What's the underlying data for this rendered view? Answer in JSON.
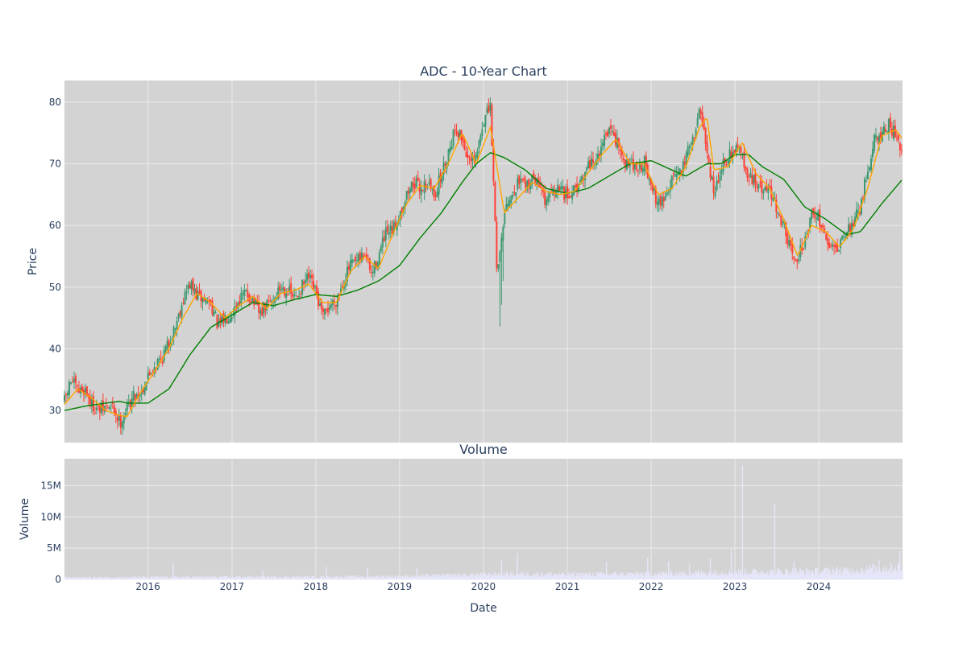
{
  "colors": {
    "plot_bg": "#d3d3d3",
    "grid": "#ebebeb",
    "up": "#3d9970",
    "down": "#ff4136",
    "ma_short": "#ffa500",
    "ma_long": "#008000",
    "volume": "#e6e6fa",
    "text": "#2a3f5f"
  },
  "chart_data": [
    {
      "type": "candlestick",
      "title": "ADC - 10-Year Chart",
      "xlabel": "",
      "ylabel": "Price",
      "grid": true,
      "x_tick_labels": [
        "2016",
        "2017",
        "2018",
        "2019",
        "2020",
        "2021",
        "2022",
        "2023",
        "2024"
      ],
      "y_tick_labels": [
        "30",
        "40",
        "50",
        "60",
        "70",
        "80"
      ],
      "xlim": [
        "2015-01-02",
        "2024-12-31"
      ],
      "ylim": [
        24.8,
        83.5
      ],
      "close_anchors": [
        [
          "2015-01-02",
          31.5
        ],
        [
          "2015-02-01",
          35.0
        ],
        [
          "2015-03-01",
          33.0
        ],
        [
          "2015-04-01",
          33.5
        ],
        [
          "2015-05-01",
          31.0
        ],
        [
          "2015-06-01",
          30.0
        ],
        [
          "2015-07-01",
          30.5
        ],
        [
          "2015-08-01",
          30.5
        ],
        [
          "2015-09-01",
          28.0
        ],
        [
          "2015-10-01",
          30.5
        ],
        [
          "2015-11-01",
          32.5
        ],
        [
          "2015-12-01",
          33.0
        ],
        [
          "2016-01-01",
          35.5
        ],
        [
          "2016-02-01",
          37.5
        ],
        [
          "2016-03-01",
          38.5
        ],
        [
          "2016-04-01",
          41.0
        ],
        [
          "2016-05-01",
          44.0
        ],
        [
          "2016-06-01",
          48.0
        ],
        [
          "2016-07-01",
          50.5
        ],
        [
          "2016-08-01",
          48.5
        ],
        [
          "2016-09-01",
          48.0
        ],
        [
          "2016-10-01",
          47.5
        ],
        [
          "2016-11-01",
          43.5
        ],
        [
          "2016-12-01",
          45.0
        ],
        [
          "2017-01-01",
          46.0
        ],
        [
          "2017-02-01",
          48.0
        ],
        [
          "2017-03-01",
          49.0
        ],
        [
          "2017-04-01",
          48.0
        ],
        [
          "2017-05-01",
          45.5
        ],
        [
          "2017-06-01",
          47.0
        ],
        [
          "2017-07-01",
          48.0
        ],
        [
          "2017-08-01",
          50.0
        ],
        [
          "2017-09-01",
          49.5
        ],
        [
          "2017-10-01",
          48.0
        ],
        [
          "2017-11-01",
          50.0
        ],
        [
          "2017-12-01",
          51.5
        ],
        [
          "2018-01-01",
          49.0
        ],
        [
          "2018-02-01",
          45.0
        ],
        [
          "2018-03-01",
          47.0
        ],
        [
          "2018-04-01",
          48.0
        ],
        [
          "2018-05-01",
          51.0
        ],
        [
          "2018-06-01",
          53.5
        ],
        [
          "2018-07-01",
          54.0
        ],
        [
          "2018-08-01",
          55.5
        ],
        [
          "2018-09-01",
          52.0
        ],
        [
          "2018-10-01",
          55.0
        ],
        [
          "2018-11-01",
          58.5
        ],
        [
          "2018-12-01",
          59.0
        ],
        [
          "2019-01-01",
          62.0
        ],
        [
          "2019-02-01",
          65.0
        ],
        [
          "2019-03-01",
          67.0
        ],
        [
          "2019-04-01",
          66.0
        ],
        [
          "2019-05-01",
          67.0
        ],
        [
          "2019-06-01",
          65.0
        ],
        [
          "2019-07-01",
          68.0
        ],
        [
          "2019-08-01",
          72.0
        ],
        [
          "2019-09-01",
          76.0
        ],
        [
          "2019-10-01",
          74.0
        ],
        [
          "2019-11-01",
          70.0
        ],
        [
          "2019-12-01",
          71.0
        ],
        [
          "2020-01-01",
          77.0
        ],
        [
          "2020-02-01",
          79.0
        ],
        [
          "2020-03-01",
          52.0
        ],
        [
          "2020-04-01",
          62.0
        ],
        [
          "2020-05-01",
          64.0
        ],
        [
          "2020-06-01",
          67.0
        ],
        [
          "2020-07-01",
          66.0
        ],
        [
          "2020-08-01",
          68.0
        ],
        [
          "2020-09-01",
          66.0
        ],
        [
          "2020-10-01",
          64.0
        ],
        [
          "2020-11-01",
          65.0
        ],
        [
          "2020-12-01",
          66.0
        ],
        [
          "2021-01-01",
          64.5
        ],
        [
          "2021-02-01",
          66.0
        ],
        [
          "2021-03-01",
          67.5
        ],
        [
          "2021-04-01",
          70.0
        ],
        [
          "2021-05-01",
          71.0
        ],
        [
          "2021-06-01",
          73.0
        ],
        [
          "2021-07-01",
          75.0
        ],
        [
          "2021-08-01",
          74.0
        ],
        [
          "2021-09-01",
          70.0
        ],
        [
          "2021-10-01",
          70.5
        ],
        [
          "2021-11-01",
          69.0
        ],
        [
          "2021-12-01",
          70.5
        ],
        [
          "2022-01-01",
          66.0
        ],
        [
          "2022-02-01",
          63.5
        ],
        [
          "2022-03-01",
          64.5
        ],
        [
          "2022-04-01",
          68.0
        ],
        [
          "2022-05-01",
          68.0
        ],
        [
          "2022-06-01",
          71.0
        ],
        [
          "2022-07-01",
          74.0
        ],
        [
          "2022-08-01",
          79.0
        ],
        [
          "2022-09-01",
          72.0
        ],
        [
          "2022-10-01",
          65.0
        ],
        [
          "2022-11-01",
          69.0
        ],
        [
          "2022-12-01",
          71.0
        ],
        [
          "2023-01-01",
          73.0
        ],
        [
          "2023-02-01",
          71.0
        ],
        [
          "2023-03-01",
          68.0
        ],
        [
          "2023-04-01",
          67.0
        ],
        [
          "2023-05-01",
          65.5
        ],
        [
          "2023-06-01",
          65.5
        ],
        [
          "2023-07-01",
          63.0
        ],
        [
          "2023-08-01",
          60.0
        ],
        [
          "2023-09-01",
          56.0
        ],
        [
          "2023-10-01",
          54.5
        ],
        [
          "2023-11-01",
          57.5
        ],
        [
          "2023-12-01",
          62.0
        ],
        [
          "2024-01-01",
          61.5
        ],
        [
          "2024-02-01",
          57.5
        ],
        [
          "2024-03-01",
          56.5
        ],
        [
          "2024-04-01",
          56.5
        ],
        [
          "2024-05-01",
          58.5
        ],
        [
          "2024-06-01",
          61.0
        ],
        [
          "2024-07-01",
          63.0
        ],
        [
          "2024-08-01",
          69.0
        ],
        [
          "2024-09-01",
          74.0
        ],
        [
          "2024-10-01",
          75.0
        ],
        [
          "2024-11-01",
          76.5
        ],
        [
          "2024-12-01",
          74.5
        ],
        [
          "2024-12-31",
          70.5
        ]
      ],
      "sma_short_anchors": [
        [
          "2015-01-02",
          31.0
        ],
        [
          "2015-03-01",
          33.5
        ],
        [
          "2015-05-01",
          32.0
        ],
        [
          "2015-07-01",
          30.0
        ],
        [
          "2015-09-01",
          29.2
        ],
        [
          "2015-10-01",
          29.0
        ],
        [
          "2015-12-01",
          33.0
        ],
        [
          "2016-02-01",
          36.5
        ],
        [
          "2016-04-01",
          40.0
        ],
        [
          "2016-06-01",
          45.0
        ],
        [
          "2016-08-01",
          49.0
        ],
        [
          "2016-10-01",
          47.5
        ],
        [
          "2016-12-01",
          45.0
        ],
        [
          "2017-02-01",
          47.0
        ],
        [
          "2017-04-01",
          48.5
        ],
        [
          "2017-06-01",
          46.5
        ],
        [
          "2017-08-01",
          49.0
        ],
        [
          "2017-10-01",
          49.5
        ],
        [
          "2017-12-01",
          50.5
        ],
        [
          "2018-02-01",
          47.5
        ],
        [
          "2018-04-01",
          47.5
        ],
        [
          "2018-06-01",
          52.5
        ],
        [
          "2018-08-01",
          55.0
        ],
        [
          "2018-10-01",
          53.0
        ],
        [
          "2018-12-01",
          58.5
        ],
        [
          "2019-02-01",
          63.5
        ],
        [
          "2019-04-01",
          66.5
        ],
        [
          "2019-06-01",
          66.0
        ],
        [
          "2019-08-01",
          70.0
        ],
        [
          "2019-10-01",
          75.0
        ],
        [
          "2019-12-01",
          70.0
        ],
        [
          "2020-02-01",
          76.0
        ],
        [
          "2020-04-01",
          62.0
        ],
        [
          "2020-06-01",
          64.5
        ],
        [
          "2020-08-01",
          67.0
        ],
        [
          "2020-10-01",
          65.5
        ],
        [
          "2020-12-01",
          65.0
        ],
        [
          "2021-02-01",
          65.5
        ],
        [
          "2021-04-01",
          68.5
        ],
        [
          "2021-06-01",
          71.5
        ],
        [
          "2021-08-01",
          74.0
        ],
        [
          "2021-10-01",
          70.0
        ],
        [
          "2021-12-01",
          70.0
        ],
        [
          "2022-02-01",
          65.0
        ],
        [
          "2022-04-01",
          66.0
        ],
        [
          "2022-06-01",
          69.5
        ],
        [
          "2022-08-01",
          76.0
        ],
        [
          "2022-09-01",
          77.5
        ],
        [
          "2022-10-01",
          69.0
        ],
        [
          "2022-12-01",
          69.5
        ],
        [
          "2023-02-01",
          73.5
        ],
        [
          "2023-04-01",
          68.5
        ],
        [
          "2023-06-01",
          66.0
        ],
        [
          "2023-08-01",
          61.0
        ],
        [
          "2023-10-01",
          55.0
        ],
        [
          "2023-12-01",
          60.0
        ],
        [
          "2024-02-01",
          59.0
        ],
        [
          "2024-04-01",
          56.5
        ],
        [
          "2024-06-01",
          59.5
        ],
        [
          "2024-08-01",
          66.0
        ],
        [
          "2024-10-01",
          74.5
        ],
        [
          "2024-12-01",
          75.5
        ],
        [
          "2024-12-31",
          74.0
        ]
      ],
      "sma_long_anchors": [
        [
          "2015-01-02",
          30.0
        ],
        [
          "2015-04-01",
          30.7
        ],
        [
          "2015-07-01",
          31.2
        ],
        [
          "2015-09-01",
          31.5
        ],
        [
          "2015-10-01",
          31.2
        ],
        [
          "2016-01-01",
          31.2
        ],
        [
          "2016-04-01",
          33.5
        ],
        [
          "2016-07-01",
          39.0
        ],
        [
          "2016-10-01",
          43.5
        ],
        [
          "2017-01-01",
          45.5
        ],
        [
          "2017-04-01",
          47.5
        ],
        [
          "2017-07-01",
          47.0
        ],
        [
          "2017-10-01",
          48.0
        ],
        [
          "2018-01-01",
          48.8
        ],
        [
          "2018-04-01",
          48.5
        ],
        [
          "2018-07-01",
          49.5
        ],
        [
          "2018-10-01",
          51.0
        ],
        [
          "2019-01-01",
          53.5
        ],
        [
          "2019-04-01",
          58.0
        ],
        [
          "2019-07-01",
          62.0
        ],
        [
          "2019-10-01",
          67.0
        ],
        [
          "2019-12-01",
          70.0
        ],
        [
          "2020-02-01",
          71.8
        ],
        [
          "2020-04-01",
          71.0
        ],
        [
          "2020-07-01",
          69.0
        ],
        [
          "2020-10-01",
          66.0
        ],
        [
          "2021-01-01",
          65.2
        ],
        [
          "2021-04-01",
          66.0
        ],
        [
          "2021-07-01",
          68.0
        ],
        [
          "2021-10-01",
          70.0
        ],
        [
          "2022-01-01",
          70.5
        ],
        [
          "2022-04-01",
          69.0
        ],
        [
          "2022-06-01",
          68.0
        ],
        [
          "2022-09-01",
          70.0
        ],
        [
          "2022-11-01",
          70.0
        ],
        [
          "2023-01-01",
          71.5
        ],
        [
          "2023-03-01",
          71.5
        ],
        [
          "2023-05-01",
          69.5
        ],
        [
          "2023-08-01",
          67.5
        ],
        [
          "2023-11-01",
          63.0
        ],
        [
          "2024-02-01",
          61.0
        ],
        [
          "2024-05-01",
          58.5
        ],
        [
          "2024-07-01",
          59.0
        ],
        [
          "2024-10-01",
          63.5
        ],
        [
          "2024-12-31",
          67.5
        ]
      ]
    },
    {
      "type": "bar",
      "title": "Volume",
      "xlabel": "Date",
      "ylabel": "Volume",
      "grid": true,
      "x_tick_labels": [
        "2016",
        "2017",
        "2018",
        "2019",
        "2020",
        "2021",
        "2022",
        "2023",
        "2024"
      ],
      "y_tick_labels": [
        "0",
        "5M",
        "10M",
        "15M"
      ],
      "xlim": [
        "2015-01-02",
        "2024-12-31"
      ],
      "ylim": [
        0,
        19300000
      ],
      "baseline_anchors": [
        [
          "2015-01-02",
          300000
        ],
        [
          "2016-01-01",
          350000
        ],
        [
          "2017-01-01",
          400000
        ],
        [
          "2018-01-01",
          400000
        ],
        [
          "2019-01-01",
          500000
        ],
        [
          "2019-06-01",
          600000
        ],
        [
          "2020-01-01",
          800000
        ],
        [
          "2020-06-01",
          900000
        ],
        [
          "2021-01-01",
          800000
        ],
        [
          "2022-01-01",
          900000
        ],
        [
          "2022-06-01",
          1000000
        ],
        [
          "2023-01-01",
          1200000
        ],
        [
          "2024-01-01",
          1300000
        ],
        [
          "2024-06-01",
          1500000
        ],
        [
          "2024-12-31",
          2000000
        ]
      ],
      "spikes": [
        [
          "2016-04-20",
          2700000
        ],
        [
          "2017-05-15",
          1500000
        ],
        [
          "2018-02-15",
          2000000
        ],
        [
          "2018-08-15",
          1800000
        ],
        [
          "2019-03-18",
          1800000
        ],
        [
          "2020-03-20",
          3000000
        ],
        [
          "2020-05-28",
          4200000
        ],
        [
          "2021-06-20",
          2800000
        ],
        [
          "2021-12-17",
          3500000
        ],
        [
          "2022-03-18",
          2900000
        ],
        [
          "2022-06-17",
          2400000
        ],
        [
          "2022-09-16",
          3400000
        ],
        [
          "2022-12-16",
          5000000
        ],
        [
          "2023-02-03",
          18200000
        ],
        [
          "2023-06-23",
          12000000
        ],
        [
          "2023-09-15",
          2900000
        ],
        [
          "2024-09-20",
          3200000
        ],
        [
          "2024-12-20",
          4500000
        ]
      ]
    }
  ]
}
